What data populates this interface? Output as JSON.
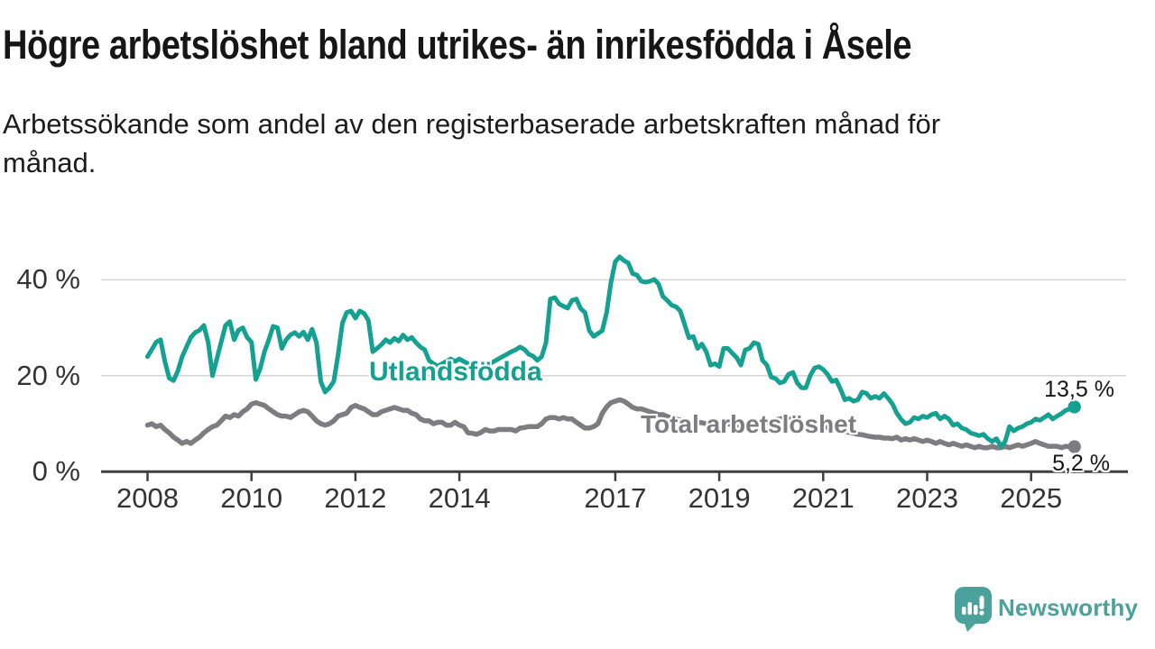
{
  "title": "Högre arbetslöshet bland utrikes- än inrikesfödda i Åsele",
  "subtitle": "Arbetssökande som andel av den registerbaserade arbetskraften månad för månad.",
  "subtitle_lines": [
    "Arbetssökande som andel av den registerbaserade arbetskraften månad för",
    "månad."
  ],
  "branding": {
    "logo_text": "Newsworthy",
    "logo_color": "#4ba29b",
    "logo_icon": "speech-bubble-bar-chart"
  },
  "colors": {
    "accent_teal": "#14a192",
    "line_gray": "#7d7d81",
    "grid": "#d8d8d8",
    "axis": "#3f3f3f",
    "text": "#161616"
  },
  "chart_data": {
    "type": "line",
    "frequency": "monthly",
    "x_start": "2008-01",
    "x_end": "2025-11",
    "ylim": [
      0,
      47
    ],
    "grid": true,
    "yticks": [
      {
        "value": 0,
        "label": "0 %"
      },
      {
        "value": 20,
        "label": "20 %"
      },
      {
        "value": 40,
        "label": "40 %"
      }
    ],
    "xticks": [
      2008,
      2010,
      2012,
      2014,
      2017,
      2019,
      2021,
      2023,
      2025
    ],
    "series": [
      {
        "name": "Utlandsfödda",
        "color": "#14a192",
        "end_label": "13,5 %",
        "end_value": 13.5,
        "values": [
          24.0,
          25.5,
          27.0,
          27.5,
          23.0,
          19.5,
          19.0,
          21.0,
          24.0,
          26.0,
          28.0,
          29.0,
          29.5,
          30.5,
          27.0,
          20.0,
          23.5,
          27.0,
          30.5,
          31.3,
          27.5,
          29.5,
          30.0,
          28.0,
          27.0,
          19.2,
          21.5,
          25.0,
          27.5,
          30.3,
          30.0,
          25.7,
          27.5,
          28.5,
          29.0,
          28.2,
          29.1,
          27.5,
          29.7,
          26.9,
          18.8,
          16.6,
          17.5,
          18.8,
          24.4,
          31.0,
          33.2,
          33.5,
          32.0,
          33.5,
          33.0,
          31.5,
          25.0,
          25.7,
          26.5,
          27.5,
          26.9,
          27.8,
          27.2,
          28.5,
          27.5,
          28.0,
          26.9,
          26.0,
          25.4,
          23.2,
          22.5,
          22.0,
          22.5,
          23.0,
          23.5,
          23.0,
          23.5,
          23.0,
          22.5,
          22.0,
          21.5,
          21.8,
          22.0,
          22.5,
          23.0,
          23.5,
          24.0,
          24.5,
          25.0,
          25.4,
          26.0,
          25.5,
          24.5,
          24.1,
          23.2,
          24.0,
          26.9,
          36.0,
          36.3,
          35.0,
          34.5,
          34.1,
          35.7,
          36.0,
          34.0,
          33.2,
          29.4,
          28.2,
          28.8,
          29.4,
          33.2,
          39.5,
          43.8,
          44.8,
          44.0,
          43.5,
          41.3,
          41.0,
          39.7,
          39.5,
          39.7,
          40.1,
          39.1,
          36.5,
          35.7,
          34.7,
          34.4,
          33.5,
          30.7,
          27.9,
          28.2,
          25.7,
          26.6,
          25.0,
          22.2,
          22.5,
          21.9,
          25.7,
          25.7,
          24.7,
          23.8,
          22.2,
          25.4,
          25.7,
          26.9,
          26.6,
          23.2,
          22.2,
          19.7,
          19.4,
          18.5,
          18.8,
          20.3,
          20.7,
          18.5,
          17.5,
          17.5,
          20.0,
          21.6,
          21.9,
          21.3,
          20.3,
          18.8,
          19.1,
          17.2,
          15.0,
          15.3,
          14.7,
          15.0,
          16.6,
          16.3,
          15.3,
          15.7,
          15.3,
          16.3,
          15.3,
          14.1,
          12.2,
          10.9,
          10.0,
          10.3,
          11.3,
          11.0,
          11.6,
          11.3,
          11.9,
          12.2,
          11.0,
          11.6,
          11.0,
          9.7,
          10.0,
          9.1,
          8.8,
          8.1,
          7.8,
          7.5,
          7.8,
          6.9,
          6.3,
          6.9,
          5.3,
          6.3,
          9.4,
          8.5,
          9.1,
          9.4,
          10.0,
          10.3,
          11.0,
          10.7,
          11.3,
          11.9,
          11.0,
          11.6,
          12.1,
          12.8,
          13.1,
          13.5
        ]
      },
      {
        "name": "Total arbetslöshet",
        "color": "#7d7d81",
        "end_label": "5,2 %",
        "end_value": 5.2,
        "values": [
          9.7,
          10.0,
          9.4,
          9.7,
          8.8,
          8.1,
          7.2,
          6.6,
          5.9,
          6.3,
          5.9,
          6.6,
          7.2,
          8.1,
          8.8,
          9.4,
          9.7,
          10.6,
          11.6,
          11.3,
          11.9,
          11.6,
          12.5,
          13.1,
          14.1,
          14.4,
          14.1,
          13.8,
          13.1,
          12.5,
          11.9,
          11.6,
          11.6,
          11.3,
          11.9,
          12.5,
          12.8,
          12.5,
          11.6,
          10.6,
          10.0,
          9.7,
          10.0,
          10.6,
          11.6,
          11.9,
          12.2,
          13.4,
          13.8,
          13.4,
          13.1,
          12.5,
          11.9,
          11.9,
          12.5,
          12.8,
          13.1,
          13.4,
          13.1,
          12.8,
          12.8,
          12.2,
          11.9,
          11.0,
          10.6,
          10.6,
          10.0,
          10.3,
          10.3,
          9.7,
          9.7,
          10.3,
          9.7,
          9.4,
          8.1,
          8.0,
          7.8,
          8.2,
          8.8,
          8.5,
          8.5,
          8.8,
          8.8,
          8.8,
          8.8,
          8.5,
          9.1,
          9.2,
          9.4,
          9.4,
          9.4,
          10.0,
          11.0,
          11.3,
          11.3,
          11.0,
          11.3,
          11.0,
          11.0,
          10.3,
          9.7,
          9.1,
          9.1,
          9.4,
          10.0,
          12.2,
          13.5,
          14.4,
          14.7,
          15.0,
          14.7,
          14.1,
          13.4,
          13.1,
          13.1,
          12.8,
          12.5,
          12.2,
          11.9,
          11.9,
          11.5,
          11.2,
          11.0,
          10.8,
          10.5,
          10.3,
          10.2,
          10.3,
          10.2,
          10.0,
          10.0,
          10.2,
          10.3,
          10.2,
          10.0,
          9.8,
          9.7,
          9.8,
          10.0,
          9.8,
          9.7,
          9.8,
          10.0,
          10.3,
          10.5,
          10.8,
          11.0,
          11.2,
          11.0,
          10.8,
          10.5,
          10.3,
          10.2,
          10.0,
          9.8,
          9.7,
          9.5,
          9.2,
          9.0,
          8.8,
          8.5,
          8.3,
          8.2,
          8.0,
          7.8,
          7.7,
          7.5,
          7.3,
          7.2,
          7.2,
          7.0,
          7.0,
          6.9,
          7.2,
          6.6,
          6.9,
          6.6,
          6.9,
          6.6,
          6.3,
          6.6,
          6.3,
          5.9,
          6.3,
          5.9,
          5.6,
          5.9,
          5.6,
          5.3,
          5.6,
          5.3,
          5.0,
          5.3,
          5.0,
          5.0,
          5.3,
          5.0,
          5.0,
          5.3,
          5.0,
          5.3,
          5.6,
          5.3,
          5.6,
          5.9,
          6.3,
          5.9,
          5.6,
          5.3,
          5.3,
          5.3,
          5.0,
          5.3,
          5.2,
          5.2
        ]
      }
    ]
  }
}
